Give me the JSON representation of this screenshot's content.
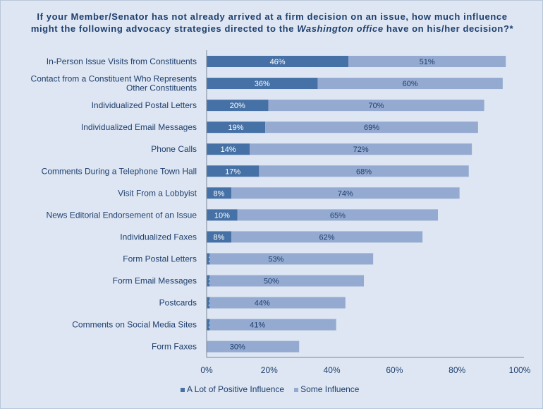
{
  "chart_data": {
    "type": "bar",
    "orientation": "horizontal",
    "stacked": true,
    "title_parts": [
      "If your Member/Senator has not already arrived at a firm decision on an issue, how much influence might the following advocacy strategies directed to the ",
      "Washington office",
      " have on his/her decision?*"
    ],
    "categories": [
      "In-Person Issue Visits from Constituents",
      "Contact from a Constituent Who Represents Other Constituents",
      "Individualized Postal Letters",
      "Individualized Email Messages",
      "Phone Calls",
      "Comments During a Telephone Town Hall",
      "Visit From a Lobbyist",
      "News Editorial Endorsement of an Issue",
      "Individualized Faxes",
      "Form Postal Letters",
      "Form Email Messages",
      "Postcards",
      "Comments on Social Media Sites",
      "Form Faxes"
    ],
    "category_lines": [
      [
        "In-Person Issue Visits from Constituents"
      ],
      [
        "Contact from a Constituent Who Represents",
        "Other Constituents"
      ],
      [
        "Individualized Postal Letters"
      ],
      [
        "Individualized Email Messages"
      ],
      [
        "Phone Calls"
      ],
      [
        "Comments During a Telephone Town Hall"
      ],
      [
        "Visit From a Lobbyist"
      ],
      [
        "News Editorial Endorsement of an Issue"
      ],
      [
        "Individualized Faxes"
      ],
      [
        "Form Postal Letters"
      ],
      [
        "Form Email Messages"
      ],
      [
        "Postcards"
      ],
      [
        "Comments on Social Media Sites"
      ],
      [
        "Form Faxes"
      ]
    ],
    "series": [
      {
        "name": "A Lot of Positive Influence",
        "color": "#4571a6",
        "values": [
          46,
          36,
          20,
          19,
          14,
          17,
          8,
          10,
          8,
          1,
          1,
          1,
          1,
          0
        ]
      },
      {
        "name": "Some Influence",
        "color": "#94aad0",
        "values": [
          51,
          60,
          70,
          69,
          72,
          68,
          74,
          65,
          62,
          53,
          50,
          44,
          41,
          30
        ]
      }
    ],
    "xlim": [
      0,
      100
    ],
    "xticks": [
      "0%",
      "20%",
      "40%",
      "60%",
      "80%",
      "100%"
    ],
    "legend_position": "bottom"
  }
}
